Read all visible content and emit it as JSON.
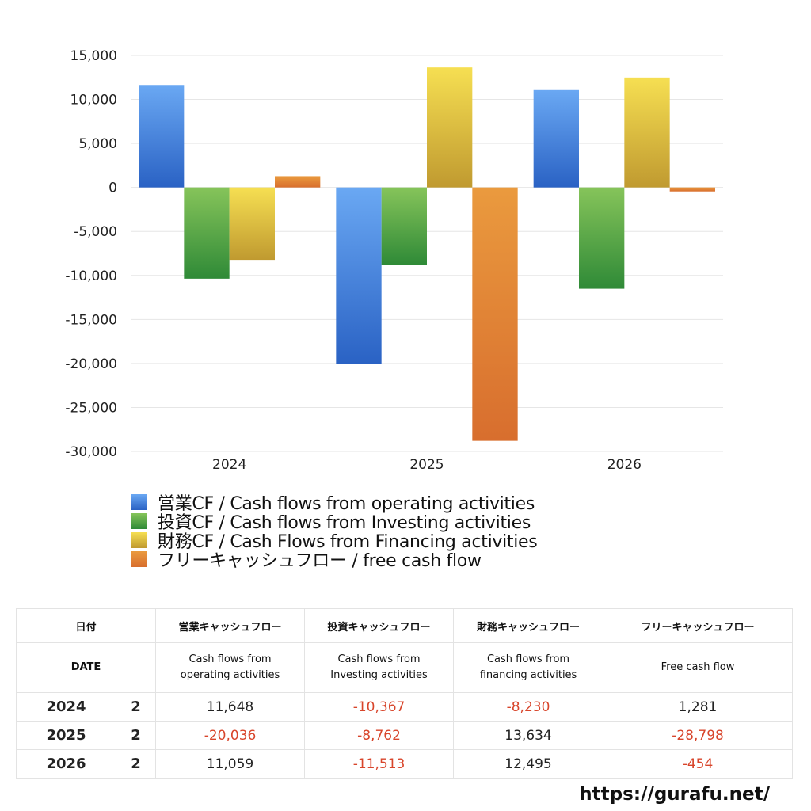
{
  "chart_data": {
    "type": "bar",
    "categories": [
      "2024",
      "2025",
      "2026"
    ],
    "series": [
      {
        "name": "営業CF / Cash flows from operating activities",
        "values": [
          11648,
          -20036,
          11059
        ],
        "color_top": "#6aa8f3",
        "color_bottom": "#2a62c4"
      },
      {
        "name": "投資CF / Cash flows from Investing activities",
        "values": [
          -10367,
          -8762,
          -11513
        ],
        "color_top": "#86c45a",
        "color_bottom": "#2f8a37"
      },
      {
        "name": "財務CF / Cash Flows from Financing activities",
        "values": [
          -8230,
          13634,
          12495
        ],
        "color_top": "#f6df52",
        "color_bottom": "#c09a30"
      },
      {
        "name": "フリーキャッシュフロー / free cash flow",
        "values": [
          1281,
          -28798,
          -454
        ],
        "color_top": "#ea9a3e",
        "color_bottom": "#d86e2e"
      }
    ],
    "ylim": [
      -30000,
      15000
    ],
    "yticks": [
      15000,
      10000,
      5000,
      0,
      -5000,
      -10000,
      -15000,
      -20000,
      -25000,
      -30000
    ],
    "ytick_labels": [
      "15,000",
      "10,000",
      "5,000",
      "0",
      "-5,000",
      "-10,000",
      "-15,000",
      "-20,000",
      "-25,000",
      "-30,000"
    ],
    "grid": true,
    "legend_position": "bottom-left"
  },
  "table": {
    "headers_jp": [
      "日付",
      "営業キャッシュフロー",
      "投資キャッシュフロー",
      "財務キャッシュフロー",
      "フリーキャッシュフロー"
    ],
    "header_date_en": "DATE",
    "headers_en": [
      [
        "Cash flows from",
        "operating activities"
      ],
      [
        "Cash flows from",
        "Investing activities"
      ],
      [
        "Cash flows from",
        "financing activities"
      ],
      [
        "Free cash flow",
        ""
      ]
    ],
    "rows": [
      {
        "year": "2024",
        "count": "2",
        "values": [
          "11,648",
          "-10,367",
          "-8,230",
          "1,281"
        ]
      },
      {
        "year": "2025",
        "count": "2",
        "values": [
          "-20,036",
          "-8,762",
          "13,634",
          "-28,798"
        ]
      },
      {
        "year": "2026",
        "count": "2",
        "values": [
          "11,059",
          "-11,513",
          "12,495",
          "-454"
        ]
      }
    ]
  },
  "footer_url": "https://gurafu.net/"
}
